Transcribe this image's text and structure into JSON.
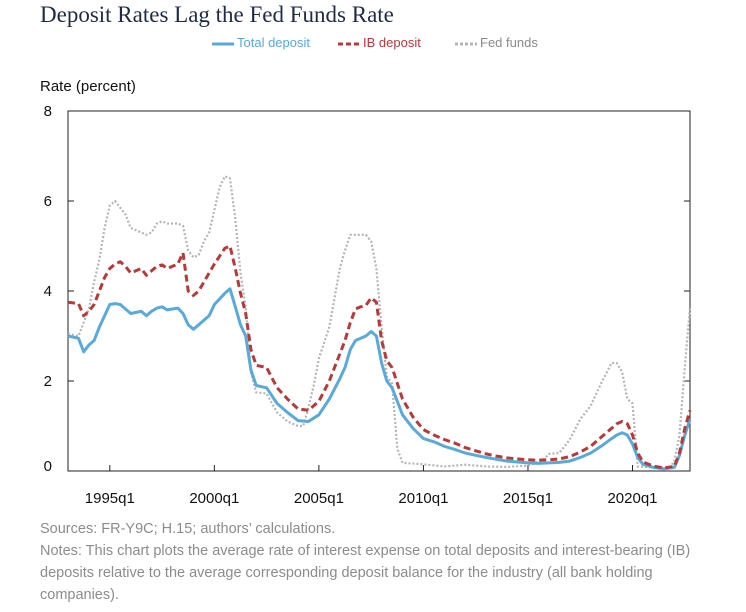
{
  "chart_data": {
    "type": "line",
    "title": "Deposit Rates Lag the Fed Funds Rate",
    "ylabel": "Rate (percent)",
    "xlabel": "",
    "ylim": [
      0,
      8
    ],
    "xlim": [
      1993.0,
      2022.75
    ],
    "y_ticks": [
      "0",
      "2",
      "4",
      "6",
      "8"
    ],
    "x_ticks": [
      {
        "label": "1995q1",
        "x": 1995.0
      },
      {
        "label": "2000q1",
        "x": 2000.0
      },
      {
        "label": "2005q1",
        "x": 2005.0
      },
      {
        "label": "2010q1",
        "x": 2010.0
      },
      {
        "label": "2015q1",
        "x": 2015.0
      },
      {
        "label": "2020q1",
        "x": 2020.0
      }
    ],
    "grid": false,
    "legend_position": "top-center",
    "series": [
      {
        "name": "Total deposit",
        "color": "#5aa9d8",
        "style": "solid",
        "points": [
          [
            1993.0,
            3.0
          ],
          [
            1993.5,
            2.95
          ],
          [
            1993.75,
            2.65
          ],
          [
            1994.0,
            2.8
          ],
          [
            1994.25,
            2.9
          ],
          [
            1994.5,
            3.2
          ],
          [
            1994.75,
            3.45
          ],
          [
            1995.0,
            3.7
          ],
          [
            1995.25,
            3.72
          ],
          [
            1995.5,
            3.7
          ],
          [
            1995.75,
            3.6
          ],
          [
            1996.0,
            3.5
          ],
          [
            1996.5,
            3.55
          ],
          [
            1996.75,
            3.45
          ],
          [
            1997.0,
            3.55
          ],
          [
            1997.25,
            3.62
          ],
          [
            1997.5,
            3.65
          ],
          [
            1997.75,
            3.58
          ],
          [
            1998.0,
            3.6
          ],
          [
            1998.25,
            3.62
          ],
          [
            1998.5,
            3.5
          ],
          [
            1998.75,
            3.25
          ],
          [
            1999.0,
            3.15
          ],
          [
            1999.25,
            3.25
          ],
          [
            1999.5,
            3.35
          ],
          [
            1999.75,
            3.45
          ],
          [
            2000.0,
            3.7
          ],
          [
            2000.5,
            3.95
          ],
          [
            2000.75,
            4.05
          ],
          [
            2001.0,
            3.65
          ],
          [
            2001.25,
            3.25
          ],
          [
            2001.5,
            3.0
          ],
          [
            2001.75,
            2.25
          ],
          [
            2002.0,
            1.9
          ],
          [
            2002.5,
            1.85
          ],
          [
            2003.0,
            1.5
          ],
          [
            2003.5,
            1.3
          ],
          [
            2004.0,
            1.12
          ],
          [
            2004.5,
            1.1
          ],
          [
            2005.0,
            1.25
          ],
          [
            2005.5,
            1.6
          ],
          [
            2006.0,
            2.05
          ],
          [
            2006.25,
            2.3
          ],
          [
            2006.5,
            2.7
          ],
          [
            2006.75,
            2.9
          ],
          [
            2007.0,
            2.95
          ],
          [
            2007.25,
            3.0
          ],
          [
            2007.5,
            3.1
          ],
          [
            2007.75,
            3.0
          ],
          [
            2008.0,
            2.4
          ],
          [
            2008.25,
            2.0
          ],
          [
            2008.5,
            1.85
          ],
          [
            2008.75,
            1.55
          ],
          [
            2009.0,
            1.25
          ],
          [
            2009.5,
            0.95
          ],
          [
            2010.0,
            0.72
          ],
          [
            2010.5,
            0.65
          ],
          [
            2011.0,
            0.55
          ],
          [
            2011.5,
            0.48
          ],
          [
            2012.0,
            0.4
          ],
          [
            2012.5,
            0.35
          ],
          [
            2013.0,
            0.3
          ],
          [
            2013.5,
            0.26
          ],
          [
            2014.0,
            0.22
          ],
          [
            2014.5,
            0.2
          ],
          [
            2015.0,
            0.18
          ],
          [
            2015.5,
            0.17
          ],
          [
            2016.0,
            0.18
          ],
          [
            2016.5,
            0.19
          ],
          [
            2017.0,
            0.22
          ],
          [
            2017.5,
            0.3
          ],
          [
            2018.0,
            0.4
          ],
          [
            2018.5,
            0.55
          ],
          [
            2019.0,
            0.72
          ],
          [
            2019.25,
            0.8
          ],
          [
            2019.5,
            0.85
          ],
          [
            2019.75,
            0.8
          ],
          [
            2020.0,
            0.6
          ],
          [
            2020.25,
            0.3
          ],
          [
            2020.5,
            0.15
          ],
          [
            2021.0,
            0.08
          ],
          [
            2021.5,
            0.05
          ],
          [
            2022.0,
            0.08
          ],
          [
            2022.25,
            0.35
          ],
          [
            2022.5,
            0.8
          ],
          [
            2022.75,
            1.15
          ]
        ]
      },
      {
        "name": "IB deposit",
        "color": "#b53a3a",
        "style": "dashed",
        "points": [
          [
            1993.0,
            3.75
          ],
          [
            1993.5,
            3.72
          ],
          [
            1993.75,
            3.45
          ],
          [
            1994.0,
            3.55
          ],
          [
            1994.25,
            3.7
          ],
          [
            1994.5,
            4.0
          ],
          [
            1994.75,
            4.3
          ],
          [
            1995.0,
            4.5
          ],
          [
            1995.25,
            4.6
          ],
          [
            1995.5,
            4.65
          ],
          [
            1995.75,
            4.55
          ],
          [
            1996.0,
            4.4
          ],
          [
            1996.25,
            4.45
          ],
          [
            1996.5,
            4.5
          ],
          [
            1996.75,
            4.35
          ],
          [
            1997.0,
            4.45
          ],
          [
            1997.25,
            4.55
          ],
          [
            1997.5,
            4.58
          ],
          [
            1997.75,
            4.5
          ],
          [
            1998.0,
            4.55
          ],
          [
            1998.25,
            4.6
          ],
          [
            1998.5,
            4.85
          ],
          [
            1998.75,
            4.0
          ],
          [
            1999.0,
            3.9
          ],
          [
            1999.25,
            4.0
          ],
          [
            1999.5,
            4.2
          ],
          [
            1999.75,
            4.4
          ],
          [
            2000.0,
            4.6
          ],
          [
            2000.5,
            4.95
          ],
          [
            2000.75,
            5.0
          ],
          [
            2001.0,
            4.5
          ],
          [
            2001.25,
            3.95
          ],
          [
            2001.5,
            3.5
          ],
          [
            2001.75,
            2.7
          ],
          [
            2002.0,
            2.35
          ],
          [
            2002.5,
            2.3
          ],
          [
            2003.0,
            1.85
          ],
          [
            2003.5,
            1.6
          ],
          [
            2004.0,
            1.38
          ],
          [
            2004.5,
            1.35
          ],
          [
            2005.0,
            1.55
          ],
          [
            2005.5,
            2.0
          ],
          [
            2006.0,
            2.6
          ],
          [
            2006.25,
            2.9
          ],
          [
            2006.5,
            3.3
          ],
          [
            2006.75,
            3.6
          ],
          [
            2007.0,
            3.65
          ],
          [
            2007.25,
            3.68
          ],
          [
            2007.5,
            3.85
          ],
          [
            2007.75,
            3.75
          ],
          [
            2008.0,
            2.9
          ],
          [
            2008.25,
            2.45
          ],
          [
            2008.5,
            2.3
          ],
          [
            2008.75,
            1.95
          ],
          [
            2009.0,
            1.6
          ],
          [
            2009.5,
            1.2
          ],
          [
            2010.0,
            0.92
          ],
          [
            2010.5,
            0.8
          ],
          [
            2011.0,
            0.7
          ],
          [
            2011.5,
            0.62
          ],
          [
            2012.0,
            0.52
          ],
          [
            2012.5,
            0.45
          ],
          [
            2013.0,
            0.38
          ],
          [
            2013.5,
            0.33
          ],
          [
            2014.0,
            0.29
          ],
          [
            2014.5,
            0.27
          ],
          [
            2015.0,
            0.25
          ],
          [
            2015.5,
            0.24
          ],
          [
            2016.0,
            0.25
          ],
          [
            2016.5,
            0.27
          ],
          [
            2017.0,
            0.32
          ],
          [
            2017.5,
            0.42
          ],
          [
            2018.0,
            0.55
          ],
          [
            2018.5,
            0.75
          ],
          [
            2019.0,
            0.95
          ],
          [
            2019.25,
            1.05
          ],
          [
            2019.5,
            1.1
          ],
          [
            2019.75,
            1.05
          ],
          [
            2020.0,
            0.8
          ],
          [
            2020.25,
            0.4
          ],
          [
            2020.5,
            0.2
          ],
          [
            2021.0,
            0.11
          ],
          [
            2021.5,
            0.07
          ],
          [
            2022.0,
            0.1
          ],
          [
            2022.25,
            0.4
          ],
          [
            2022.5,
            0.95
          ],
          [
            2022.75,
            1.35
          ]
        ]
      },
      {
        "name": "Fed funds",
        "color": "#b4b4b4",
        "style": "dotted",
        "points": [
          [
            1993.0,
            3.05
          ],
          [
            1993.5,
            3.0
          ],
          [
            1994.0,
            3.6
          ],
          [
            1994.25,
            4.2
          ],
          [
            1994.5,
            4.7
          ],
          [
            1994.75,
            5.4
          ],
          [
            1995.0,
            5.9
          ],
          [
            1995.25,
            6.0
          ],
          [
            1995.5,
            5.85
          ],
          [
            1995.75,
            5.7
          ],
          [
            1996.0,
            5.4
          ],
          [
            1996.5,
            5.3
          ],
          [
            1996.75,
            5.25
          ],
          [
            1997.0,
            5.3
          ],
          [
            1997.25,
            5.5
          ],
          [
            1997.5,
            5.55
          ],
          [
            1997.75,
            5.5
          ],
          [
            1998.0,
            5.5
          ],
          [
            1998.25,
            5.5
          ],
          [
            1998.5,
            5.45
          ],
          [
            1998.75,
            4.9
          ],
          [
            1999.0,
            4.75
          ],
          [
            1999.25,
            4.8
          ],
          [
            1999.5,
            5.1
          ],
          [
            1999.75,
            5.3
          ],
          [
            2000.0,
            5.8
          ],
          [
            2000.25,
            6.3
          ],
          [
            2000.5,
            6.55
          ],
          [
            2000.75,
            6.5
          ],
          [
            2001.0,
            5.6
          ],
          [
            2001.25,
            4.4
          ],
          [
            2001.5,
            3.65
          ],
          [
            2001.75,
            2.2
          ],
          [
            2002.0,
            1.75
          ],
          [
            2002.5,
            1.72
          ],
          [
            2003.0,
            1.3
          ],
          [
            2003.5,
            1.1
          ],
          [
            2004.0,
            1.0
          ],
          [
            2004.25,
            1.0
          ],
          [
            2004.5,
            1.4
          ],
          [
            2004.75,
            1.9
          ],
          [
            2005.0,
            2.5
          ],
          [
            2005.5,
            3.2
          ],
          [
            2006.0,
            4.5
          ],
          [
            2006.25,
            4.9
          ],
          [
            2006.5,
            5.25
          ],
          [
            2006.75,
            5.25
          ],
          [
            2007.0,
            5.25
          ],
          [
            2007.25,
            5.25
          ],
          [
            2007.5,
            5.1
          ],
          [
            2007.75,
            4.5
          ],
          [
            2008.0,
            3.2
          ],
          [
            2008.25,
            2.1
          ],
          [
            2008.5,
            1.95
          ],
          [
            2008.75,
            0.5
          ],
          [
            2009.0,
            0.18
          ],
          [
            2010.0,
            0.15
          ],
          [
            2011.0,
            0.1
          ],
          [
            2012.0,
            0.14
          ],
          [
            2013.0,
            0.1
          ],
          [
            2014.0,
            0.09
          ],
          [
            2015.0,
            0.12
          ],
          [
            2015.75,
            0.25
          ],
          [
            2016.0,
            0.38
          ],
          [
            2016.5,
            0.4
          ],
          [
            2017.0,
            0.7
          ],
          [
            2017.5,
            1.15
          ],
          [
            2018.0,
            1.45
          ],
          [
            2018.5,
            1.95
          ],
          [
            2019.0,
            2.4
          ],
          [
            2019.25,
            2.4
          ],
          [
            2019.5,
            2.2
          ],
          [
            2019.75,
            1.6
          ],
          [
            2020.0,
            1.5
          ],
          [
            2020.25,
            0.1
          ],
          [
            2021.0,
            0.08
          ],
          [
            2021.75,
            0.08
          ],
          [
            2022.0,
            0.2
          ],
          [
            2022.25,
            0.8
          ],
          [
            2022.5,
            2.3
          ],
          [
            2022.75,
            3.65
          ]
        ]
      }
    ],
    "source": "Sources: FR-Y9C; H.15; authors’ calculations.",
    "notes": "Notes: This chart plots the average rate of interest expense on total deposits and interest-bearing (IB) deposits relative to the average corresponding deposit balance for the industry (all bank holding companies)."
  }
}
